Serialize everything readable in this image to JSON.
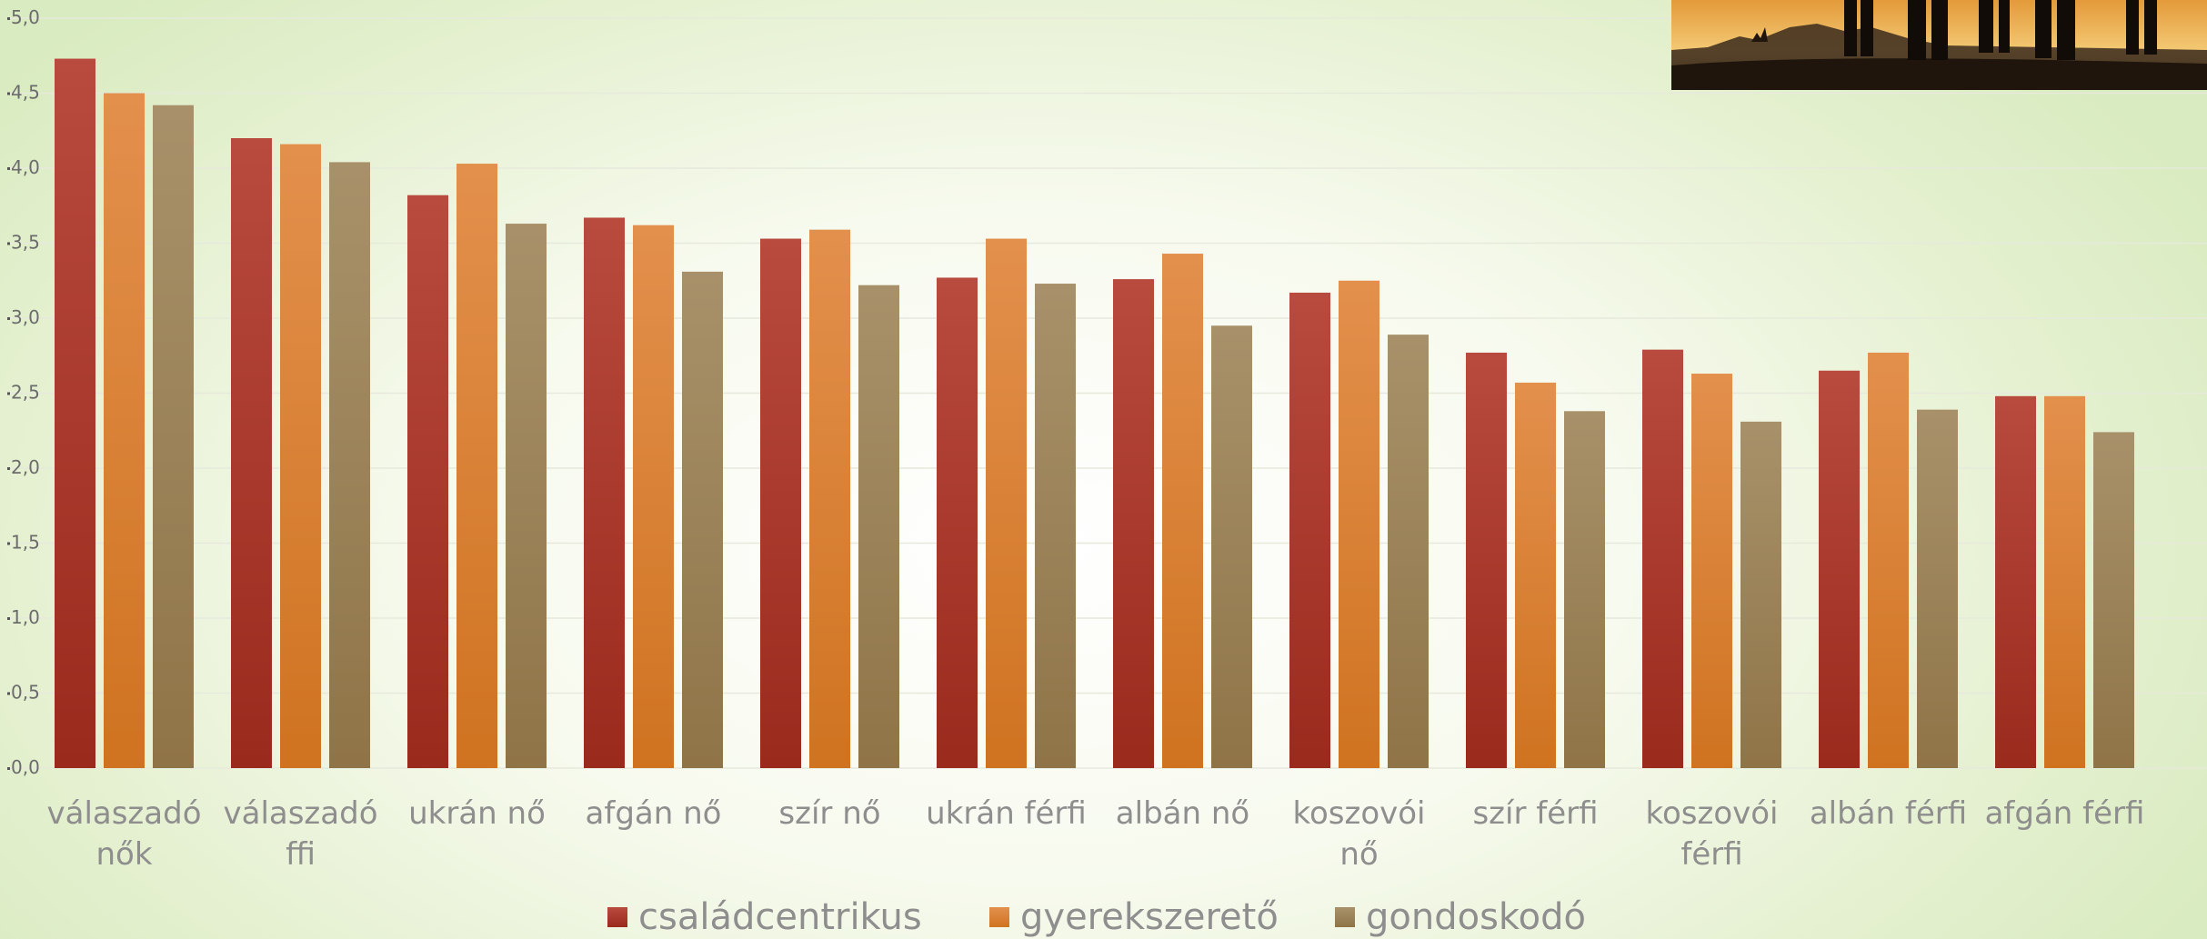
{
  "chart_data": {
    "type": "bar",
    "title": "",
    "xlabel": "",
    "ylabel": "",
    "ylim": [
      0,
      5
    ],
    "yticks": [
      "0,0",
      "0,5",
      "1,0",
      "1,5",
      "2,0",
      "2,5",
      "3,0",
      "3,5",
      "4,0",
      "4,5",
      "5,0"
    ],
    "grid": true,
    "legend_position": "bottom",
    "categories": [
      [
        "válaszadó",
        "nők"
      ],
      [
        "válaszadó",
        "ffi"
      ],
      [
        "ukrán nő"
      ],
      [
        "afgán nő"
      ],
      [
        "szír nő"
      ],
      [
        "ukrán férfi"
      ],
      [
        "albán nő"
      ],
      [
        "koszovói",
        "nő"
      ],
      [
        "szír férfi"
      ],
      [
        "koszovói",
        "férfi"
      ],
      [
        "albán férfi"
      ],
      [
        "afgán férfi"
      ]
    ],
    "series": [
      {
        "name": "családcentrikus",
        "color": "#b0352a",
        "values": [
          4.73,
          4.2,
          3.82,
          3.67,
          3.53,
          3.27,
          3.26,
          3.17,
          2.77,
          2.79,
          2.65,
          2.48
        ]
      },
      {
        "name": "gyerekszerető",
        "color": "#e0873c",
        "values": [
          4.5,
          4.16,
          4.03,
          3.62,
          3.59,
          3.53,
          3.43,
          3.25,
          2.57,
          2.63,
          2.77,
          2.48
        ]
      },
      {
        "name": "gondoskodó",
        "color": "#a08a60",
        "values": [
          4.42,
          4.04,
          3.63,
          3.31,
          3.22,
          3.23,
          2.95,
          2.89,
          2.38,
          2.31,
          2.39,
          2.24
        ]
      }
    ]
  },
  "image": {
    "photo_icon": "silhouette-photo"
  }
}
